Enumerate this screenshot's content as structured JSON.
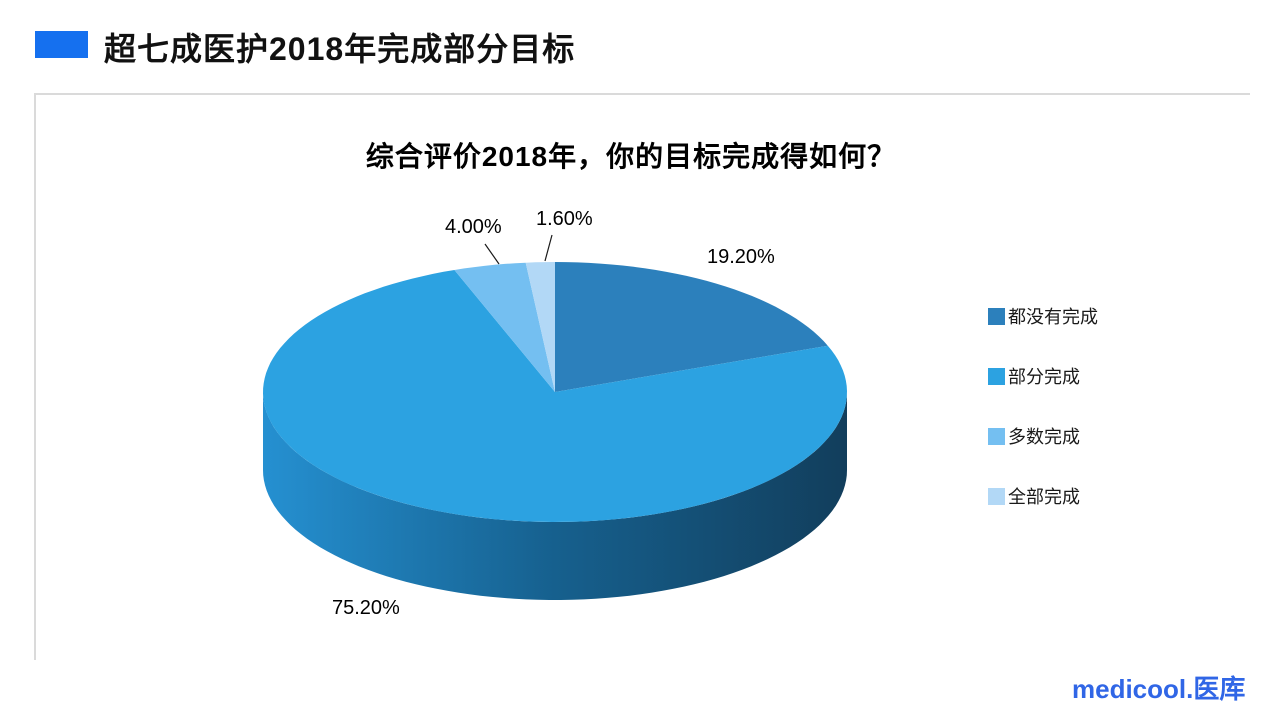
{
  "page": {
    "background": "#FFFFFF",
    "header": {
      "title": "超七成医护2018年完成部分目标",
      "accent_color": "#1570EF"
    },
    "footer": {
      "logo_text": "medicool.医库",
      "logo_color": "#3066E6"
    }
  },
  "chart_data": {
    "type": "pie",
    "style": "3d-pie",
    "title": "综合评价2018年，你的目标完成得如何？",
    "categories": [
      "都没有完成",
      "部分完成",
      "多数完成",
      "全部完成"
    ],
    "values": [
      19.2,
      75.2,
      4,
      1.6
    ],
    "data_labels": [
      "19.20%",
      "75.20%",
      "4.00%",
      "1.60%"
    ],
    "colors": [
      "#2C80BC",
      "#2CA2E1",
      "#74BFF1",
      "#B2D8F6"
    ],
    "side_gradient": [
      "#2590D1",
      "#16608E",
      "#123E5C"
    ],
    "start_angle_deg": 0,
    "direction": "clockwise",
    "legend_position": "right",
    "label_text_color": "#000000",
    "legend_text_color": "#1A1A1A"
  }
}
